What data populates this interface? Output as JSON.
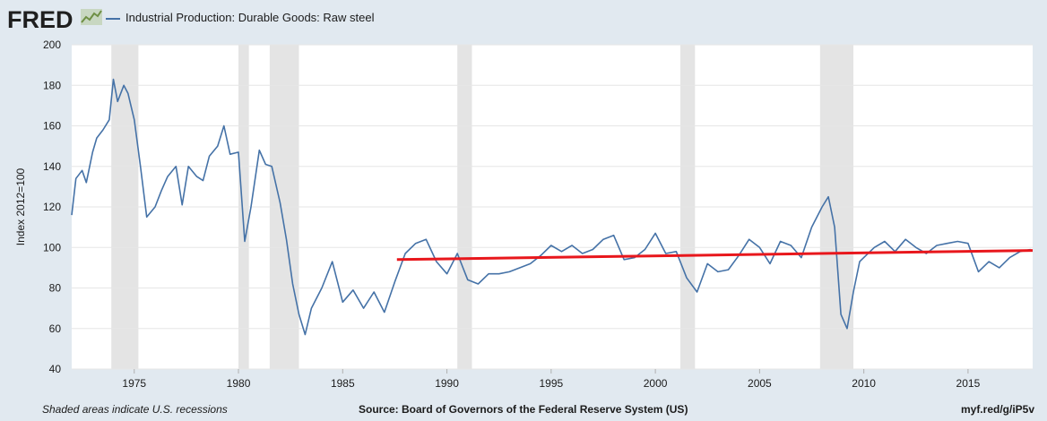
{
  "header": {
    "logo": "FRED",
    "series_label": "Industrial Production: Durable Goods: Raw steel"
  },
  "footer": {
    "note": "Shaded areas indicate U.S. recessions",
    "source": "Source: Board of Governors of the Federal Reserve System (US)",
    "link": "myf.red/g/iP5v"
  },
  "colors": {
    "series": "#4572a7",
    "trend": "#e8171c",
    "recession": "#e4e4e4",
    "grid": "#e6e6e6"
  },
  "chart_data": {
    "type": "line",
    "title": "",
    "ylabel": "Index 2012=100",
    "xlabel": "",
    "xlim": [
      1972.0,
      2018.1
    ],
    "ylim": [
      40,
      200
    ],
    "yticks": [
      40,
      60,
      80,
      100,
      120,
      140,
      160,
      180,
      200
    ],
    "xticks": [
      1975,
      1980,
      1985,
      1990,
      1995,
      2000,
      2005,
      2010,
      2015
    ],
    "grid": true,
    "legend": "top-left",
    "recessions": [
      [
        1973.9,
        1975.2
      ],
      [
        1980.0,
        1980.5
      ],
      [
        1981.5,
        1982.9
      ],
      [
        1990.5,
        1991.2
      ],
      [
        2001.2,
        2001.9
      ],
      [
        2007.9,
        2009.5
      ]
    ],
    "series": [
      {
        "name": "Industrial Production: Durable Goods: Raw steel",
        "x": [
          1972.0,
          1972.2,
          1972.5,
          1972.7,
          1973.0,
          1973.2,
          1973.5,
          1973.8,
          1974.0,
          1974.2,
          1974.5,
          1974.7,
          1975.0,
          1975.3,
          1975.6,
          1976.0,
          1976.3,
          1976.6,
          1977.0,
          1977.3,
          1977.6,
          1978.0,
          1978.3,
          1978.6,
          1979.0,
          1979.3,
          1979.6,
          1980.0,
          1980.3,
          1980.6,
          1981.0,
          1981.3,
          1981.6,
          1982.0,
          1982.3,
          1982.6,
          1982.9,
          1983.2,
          1983.5,
          1984.0,
          1984.5,
          1985.0,
          1985.5,
          1986.0,
          1986.5,
          1987.0,
          1987.5,
          1988.0,
          1988.5,
          1989.0,
          1989.5,
          1990.0,
          1990.5,
          1991.0,
          1991.5,
          1992.0,
          1992.5,
          1993.0,
          1993.5,
          1994.0,
          1994.5,
          1995.0,
          1995.5,
          1996.0,
          1996.5,
          1997.0,
          1997.5,
          1998.0,
          1998.5,
          1999.0,
          1999.5,
          2000.0,
          2000.5,
          2001.0,
          2001.5,
          2002.0,
          2002.5,
          2003.0,
          2003.5,
          2004.0,
          2004.5,
          2005.0,
          2005.5,
          2006.0,
          2006.5,
          2007.0,
          2007.5,
          2008.0,
          2008.3,
          2008.6,
          2008.9,
          2009.2,
          2009.5,
          2009.8,
          2010.0,
          2010.5,
          2011.0,
          2011.5,
          2012.0,
          2012.5,
          2013.0,
          2013.5,
          2014.0,
          2014.5,
          2015.0,
          2015.5,
          2016.0,
          2016.5,
          2017.0,
          2017.5,
          2018.0
        ],
        "values": [
          116,
          134,
          138,
          132,
          147,
          154,
          158,
          163,
          183,
          172,
          180,
          176,
          163,
          140,
          115,
          120,
          128,
          135,
          140,
          121,
          140,
          135,
          133,
          145,
          150,
          160,
          146,
          147,
          103,
          120,
          148,
          141,
          140,
          122,
          104,
          82,
          67,
          57,
          70,
          80,
          93,
          73,
          79,
          70,
          78,
          68,
          83,
          97,
          102,
          104,
          93,
          87,
          97,
          84,
          82,
          87,
          87,
          88,
          90,
          92,
          96,
          101,
          98,
          101,
          97,
          99,
          104,
          106,
          94,
          95,
          99,
          107,
          97,
          98,
          85,
          78,
          92,
          88,
          89,
          96,
          104,
          100,
          92,
          103,
          101,
          95,
          110,
          120,
          125,
          110,
          67,
          60,
          78,
          93,
          95,
          100,
          103,
          98,
          104,
          100,
          97,
          101,
          102,
          103,
          102,
          88,
          93,
          90,
          95,
          98,
          99
        ]
      },
      {
        "name": "",
        "x": [
          1987.6,
          2018.1
        ],
        "values": [
          94,
          98.5
        ]
      }
    ]
  }
}
